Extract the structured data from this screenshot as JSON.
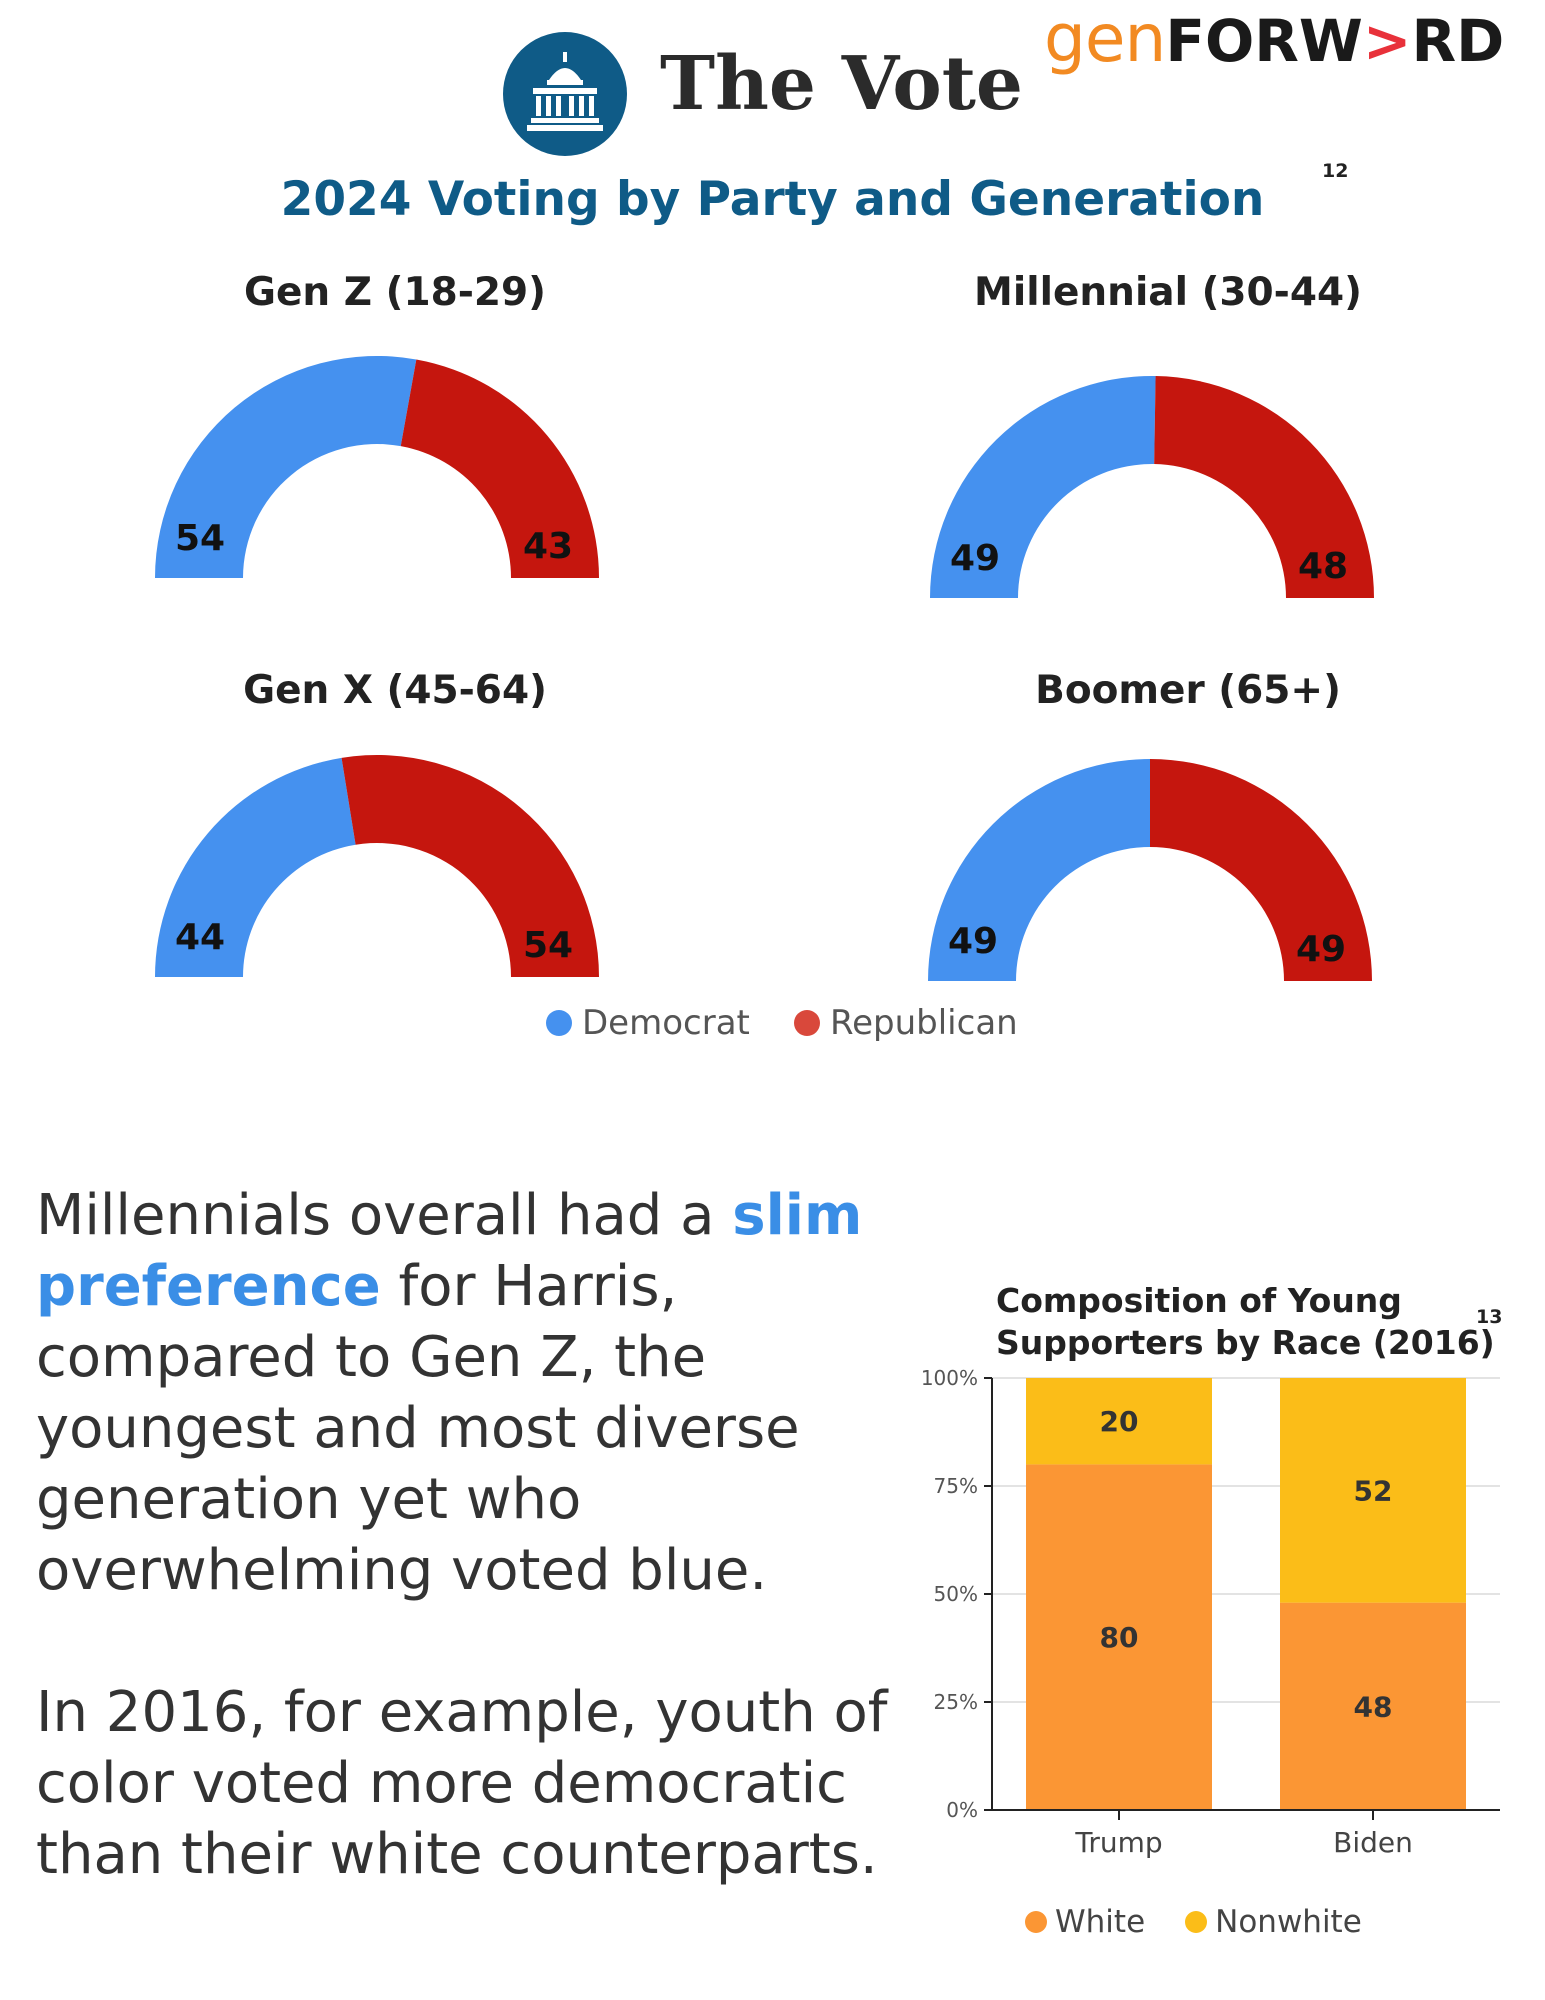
{
  "header": {
    "title": "The Vote",
    "icon": "capitol-building-icon",
    "icon_color": "#0f5b87",
    "logo": {
      "gen": "gen",
      "forw": "FORW",
      "gt": ">",
      "rd": "RD"
    }
  },
  "main_title": "2024 Voting by Party and Generation",
  "main_title_note": "12",
  "colors": {
    "democrat": "#4591ef",
    "republican": "#c5160e",
    "white": "#fb9634",
    "nonwhite": "#fbbd18"
  },
  "legend": {
    "democrat": "Democrat",
    "republican": "Republican"
  },
  "chart_data": [
    {
      "type": "pie",
      "subtype": "half-donut",
      "charts": [
        {
          "title": "Gen Z (18-29)",
          "democrat": 54,
          "republican": 43
        },
        {
          "title": "Millennial (30-44)",
          "democrat": 49,
          "republican": 48
        },
        {
          "title": "Gen X (45-64)",
          "democrat": 44,
          "republican": 54
        },
        {
          "title": "Boomer (65+)",
          "democrat": 49,
          "republican": 49
        }
      ],
      "legend": [
        "Democrat",
        "Republican"
      ],
      "legend_placement": "bottom"
    },
    {
      "type": "bar",
      "stacked": true,
      "title": "Composition of Young Supporters by Race (2016)",
      "title_note": "13",
      "categories": [
        "Trump",
        "Biden"
      ],
      "series": [
        {
          "name": "White",
          "values": [
            80,
            48
          ]
        },
        {
          "name": "Nonwhite",
          "values": [
            20,
            52
          ]
        }
      ],
      "ylim": [
        0,
        100
      ],
      "yticks": [
        "0%",
        "25%",
        "50%",
        "75%",
        "100%"
      ],
      "grid": true,
      "legend_placement": "bottom"
    }
  ],
  "text": {
    "p1_a": "Millennials overall had a ",
    "p1_highlight": "slim preference",
    "p1_b": " for Harris, compared to Gen Z, the youngest and most diverse generation yet who overwhelming voted blue.",
    "p2": "In 2016, for example, youth of color voted more democratic than their white counterparts."
  }
}
